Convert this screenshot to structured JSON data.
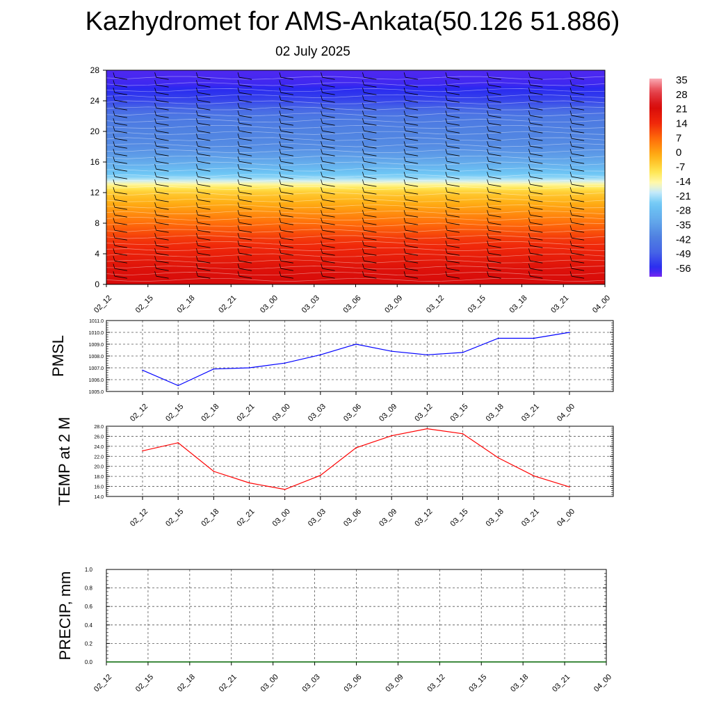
{
  "title": "Kazhydromet for AMS-Ankata(50.126 51.886)",
  "subtitle": "02 July 2025",
  "colors": {
    "pmsl_line": "#0000ff",
    "temp_line": "#ff0000",
    "precip_line": "#006400",
    "grid": "#555555"
  },
  "chart_data": [
    {
      "type": "heatmap",
      "title": "",
      "xlabel": "",
      "ylabel": "",
      "x_ticks": [
        "02_12",
        "02_15",
        "02_18",
        "02_21",
        "03_00",
        "03_03",
        "03_06",
        "03_09",
        "03_12",
        "03_15",
        "03_18",
        "03_21",
        "04_00"
      ],
      "y_ticks": [
        0,
        4,
        8,
        12,
        16,
        20,
        24,
        28
      ],
      "ylim": [
        0,
        28
      ],
      "colorbar_labels": [
        "35",
        "28",
        "21",
        "14",
        "7",
        "0",
        "-7",
        "-14",
        "-21",
        "-28",
        "-35",
        "-42",
        "-49",
        "-56"
      ],
      "colorbar_range": [
        -60,
        38
      ],
      "value_profile": {
        "levels": [
          0,
          2,
          4,
          6,
          8,
          10,
          12,
          12.8,
          14,
          16,
          18,
          20,
          22,
          24,
          26,
          28
        ],
        "temps": [
          24,
          22,
          18,
          14,
          8,
          2,
          -4,
          -10,
          -22,
          -32,
          -38,
          -40,
          -43,
          -52,
          -57,
          -58
        ]
      },
      "wind_barbs": true,
      "contours": true
    },
    {
      "type": "line",
      "ylabel": "PMSL",
      "categories": [
        "02_12",
        "02_15",
        "02_18",
        "02_21",
        "03_00",
        "03_03",
        "03_06",
        "03_09",
        "03_12",
        "03_15",
        "03_18",
        "03_21",
        "04_00"
      ],
      "y_ticks": [
        "1005.0",
        "1006.0",
        "1007.0",
        "1008.0",
        "1009.0",
        "1010.0",
        "1011.0"
      ],
      "ylim": [
        1005.0,
        1011.0
      ],
      "values": [
        1006.8,
        1005.5,
        1006.9,
        1007.0,
        1007.4,
        1008.1,
        1009.0,
        1008.4,
        1008.1,
        1008.3,
        1009.5,
        1009.5,
        1010.0
      ],
      "grid": true
    },
    {
      "type": "line",
      "ylabel": "TEMP at 2 M",
      "categories": [
        "02_12",
        "02_15",
        "02_18",
        "02_21",
        "03_00",
        "03_03",
        "03_06",
        "03_09",
        "03_12",
        "03_15",
        "03_18",
        "03_21",
        "04_00"
      ],
      "y_ticks": [
        "14.0",
        "16.0",
        "18.0",
        "20.0",
        "22.0",
        "24.0",
        "26.0",
        "28.0"
      ],
      "ylim": [
        14.0,
        28.0
      ],
      "values": [
        23.1,
        24.7,
        19.0,
        16.7,
        15.4,
        18.2,
        23.7,
        26.1,
        27.5,
        26.5,
        21.7,
        18.1,
        15.9
      ],
      "grid": true
    },
    {
      "type": "line",
      "ylabel": "PRECIP, mm",
      "categories": [
        "02_12",
        "02_15",
        "02_18",
        "02_21",
        "03_00",
        "03_03",
        "03_06",
        "03_09",
        "03_12",
        "03_15",
        "03_18",
        "03_21",
        "04_00"
      ],
      "y_ticks": [
        "0.0",
        "0.2",
        "0.4",
        "0.6",
        "0.8",
        "1.0"
      ],
      "ylim": [
        0.0,
        1.0
      ],
      "values": [
        0,
        0,
        0,
        0,
        0,
        0,
        0,
        0,
        0,
        0,
        0,
        0,
        0
      ],
      "grid": true
    }
  ]
}
